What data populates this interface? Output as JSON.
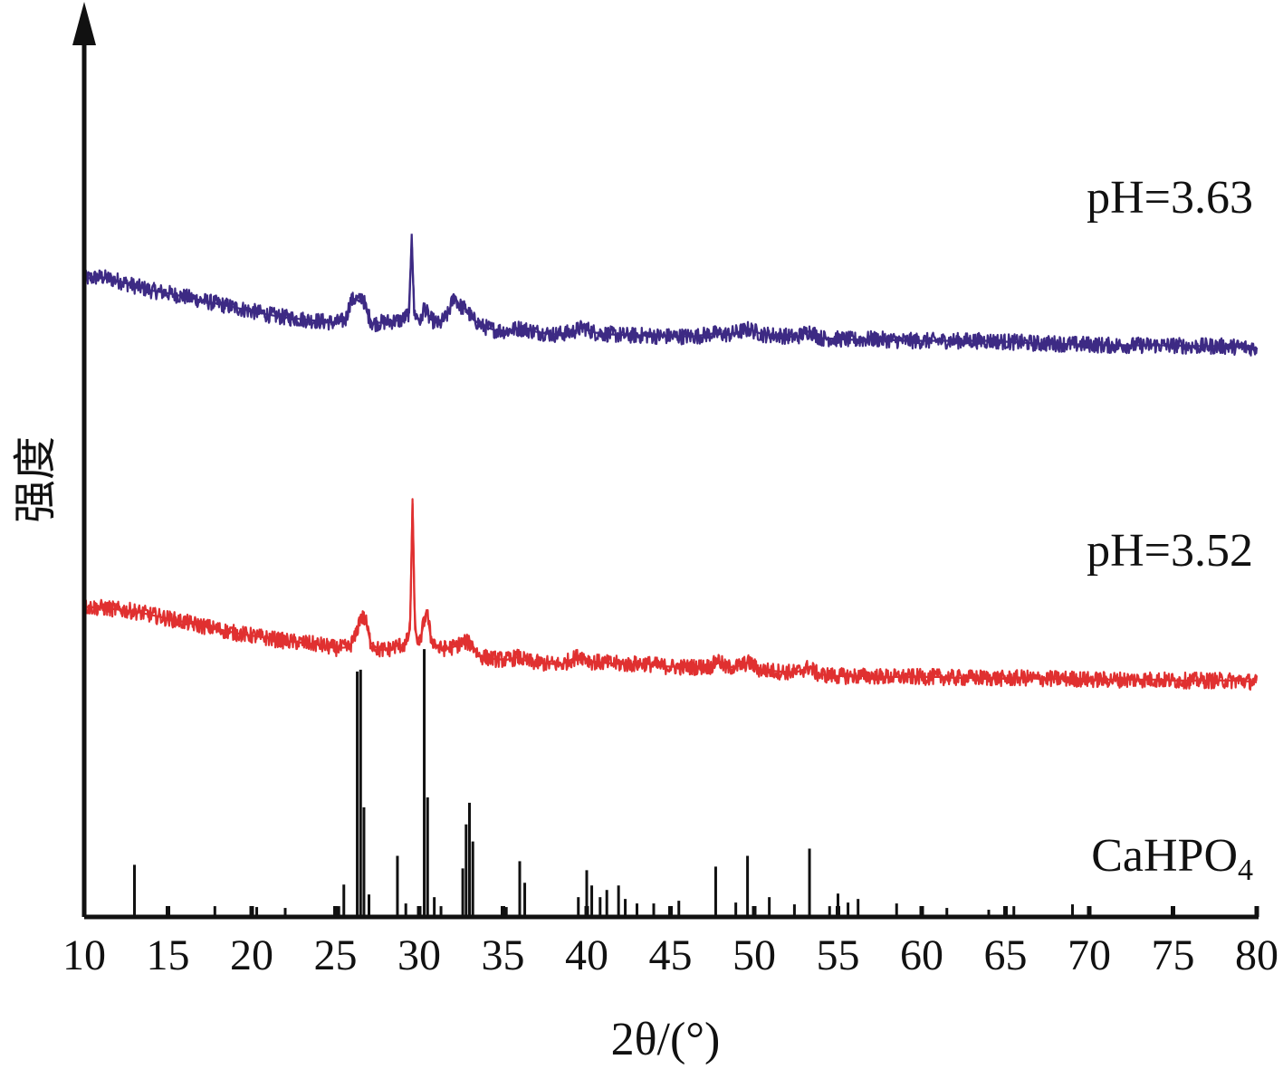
{
  "chart_data": {
    "type": "line",
    "xlabel": "2θ/(°)",
    "ylabel": "强度",
    "xlim": [
      10,
      80
    ],
    "x_ticks": [
      10,
      15,
      20,
      25,
      30,
      35,
      40,
      45,
      50,
      55,
      60,
      65,
      70,
      75,
      80
    ],
    "y_ticks": [],
    "series": [
      {
        "name": "pH=3.63",
        "color": "#3d2a84",
        "points": [
          [
            10.0,
            0.71
          ],
          [
            11.0,
            0.712
          ],
          [
            12.0,
            0.708
          ],
          [
            13.0,
            0.702
          ],
          [
            14.0,
            0.697
          ],
          [
            15.0,
            0.694
          ],
          [
            16.0,
            0.69
          ],
          [
            17.0,
            0.686
          ],
          [
            18.0,
            0.682
          ],
          [
            19.0,
            0.678
          ],
          [
            20.0,
            0.674
          ],
          [
            21.0,
            0.67
          ],
          [
            22.0,
            0.667
          ],
          [
            23.0,
            0.665
          ],
          [
            24.0,
            0.663
          ],
          [
            25.0,
            0.661
          ],
          [
            25.6,
            0.664
          ],
          [
            25.9,
            0.685
          ],
          [
            26.2,
            0.688
          ],
          [
            26.4,
            0.685
          ],
          [
            26.6,
            0.691
          ],
          [
            26.9,
            0.672
          ],
          [
            27.2,
            0.66
          ],
          [
            28.0,
            0.662
          ],
          [
            29.0,
            0.664
          ],
          [
            29.4,
            0.672
          ],
          [
            29.55,
            0.76
          ],
          [
            29.7,
            0.672
          ],
          [
            30.1,
            0.662
          ],
          [
            30.3,
            0.68
          ],
          [
            30.6,
            0.666
          ],
          [
            31.2,
            0.659
          ],
          [
            31.7,
            0.67
          ],
          [
            32.1,
            0.691
          ],
          [
            32.4,
            0.68
          ],
          [
            32.8,
            0.676
          ],
          [
            33.2,
            0.665
          ],
          [
            33.8,
            0.657
          ],
          [
            34.5,
            0.653
          ],
          [
            35.2,
            0.652
          ],
          [
            36.0,
            0.655
          ],
          [
            37.0,
            0.651
          ],
          [
            38.0,
            0.648
          ],
          [
            39.0,
            0.65
          ],
          [
            39.8,
            0.656
          ],
          [
            40.5,
            0.65
          ],
          [
            41.5,
            0.648
          ],
          [
            42.5,
            0.647
          ],
          [
            43.5,
            0.647
          ],
          [
            44.5,
            0.646
          ],
          [
            45.5,
            0.646
          ],
          [
            46.5,
            0.646
          ],
          [
            47.5,
            0.649
          ],
          [
            48.5,
            0.648
          ],
          [
            49.7,
            0.654
          ],
          [
            50.5,
            0.648
          ],
          [
            51.5,
            0.647
          ],
          [
            52.5,
            0.645
          ],
          [
            53.3,
            0.652
          ],
          [
            54.0,
            0.644
          ],
          [
            55.0,
            0.643
          ],
          [
            56.0,
            0.642
          ],
          [
            57.0,
            0.643
          ],
          [
            58.0,
            0.642
          ],
          [
            59.0,
            0.641
          ],
          [
            60.0,
            0.641
          ],
          [
            61.0,
            0.641
          ],
          [
            62.0,
            0.641
          ],
          [
            63.0,
            0.641
          ],
          [
            64.0,
            0.641
          ],
          [
            65.0,
            0.64
          ],
          [
            66.0,
            0.639
          ],
          [
            67.0,
            0.638
          ],
          [
            68.0,
            0.638
          ],
          [
            69.0,
            0.637
          ],
          [
            70.0,
            0.637
          ],
          [
            71.0,
            0.636
          ],
          [
            72.0,
            0.636
          ],
          [
            73.0,
            0.636
          ],
          [
            74.0,
            0.636
          ],
          [
            75.0,
            0.636
          ],
          [
            76.0,
            0.635
          ],
          [
            77.0,
            0.635
          ],
          [
            78.0,
            0.635
          ],
          [
            79.0,
            0.634
          ],
          [
            80.0,
            0.633
          ]
        ]
      },
      {
        "name": "pH=3.52",
        "color": "#e03030",
        "points": [
          [
            10.0,
            0.345
          ],
          [
            11.0,
            0.344
          ],
          [
            12.0,
            0.342
          ],
          [
            13.0,
            0.34
          ],
          [
            14.0,
            0.336
          ],
          [
            15.0,
            0.332
          ],
          [
            16.0,
            0.328
          ],
          [
            17.0,
            0.324
          ],
          [
            18.0,
            0.32
          ],
          [
            19.0,
            0.316
          ],
          [
            20.0,
            0.313
          ],
          [
            21.0,
            0.31
          ],
          [
            22.0,
            0.307
          ],
          [
            23.0,
            0.305
          ],
          [
            24.0,
            0.303
          ],
          [
            25.0,
            0.299
          ],
          [
            25.8,
            0.3
          ],
          [
            26.2,
            0.312
          ],
          [
            26.5,
            0.335
          ],
          [
            26.8,
            0.33
          ],
          [
            27.1,
            0.305
          ],
          [
            27.6,
            0.297
          ],
          [
            28.2,
            0.298
          ],
          [
            28.7,
            0.302
          ],
          [
            29.2,
            0.303
          ],
          [
            29.45,
            0.32
          ],
          [
            29.6,
            0.46
          ],
          [
            29.75,
            0.32
          ],
          [
            30.0,
            0.302
          ],
          [
            30.3,
            0.33
          ],
          [
            30.45,
            0.342
          ],
          [
            30.7,
            0.31
          ],
          [
            31.2,
            0.298
          ],
          [
            32.0,
            0.3
          ],
          [
            32.7,
            0.306
          ],
          [
            33.1,
            0.304
          ],
          [
            33.6,
            0.29
          ],
          [
            34.5,
            0.287
          ],
          [
            35.2,
            0.286
          ],
          [
            35.9,
            0.289
          ],
          [
            36.5,
            0.284
          ],
          [
            37.5,
            0.282
          ],
          [
            38.5,
            0.281
          ],
          [
            39.6,
            0.291
          ],
          [
            40.3,
            0.284
          ],
          [
            41.5,
            0.282
          ],
          [
            42.5,
            0.281
          ],
          [
            43.5,
            0.282
          ],
          [
            44.5,
            0.279
          ],
          [
            45.5,
            0.278
          ],
          [
            46.5,
            0.278
          ],
          [
            47.5,
            0.279
          ],
          [
            47.8,
            0.287
          ],
          [
            48.3,
            0.277
          ],
          [
            49.0,
            0.279
          ],
          [
            49.7,
            0.283
          ],
          [
            50.3,
            0.275
          ],
          [
            51.5,
            0.273
          ],
          [
            52.5,
            0.272
          ],
          [
            53.3,
            0.278
          ],
          [
            53.8,
            0.27
          ],
          [
            55.0,
            0.268
          ],
          [
            56.0,
            0.268
          ],
          [
            57.0,
            0.268
          ],
          [
            58.0,
            0.267
          ],
          [
            59.0,
            0.267
          ],
          [
            60.0,
            0.267
          ],
          [
            61.0,
            0.267
          ],
          [
            62.0,
            0.266
          ],
          [
            63.0,
            0.266
          ],
          [
            64.0,
            0.266
          ],
          [
            65.0,
            0.265
          ],
          [
            66.0,
            0.266
          ],
          [
            67.0,
            0.265
          ],
          [
            68.0,
            0.265
          ],
          [
            69.0,
            0.265
          ],
          [
            70.0,
            0.264
          ],
          [
            71.0,
            0.264
          ],
          [
            72.0,
            0.264
          ],
          [
            73.0,
            0.264
          ],
          [
            74.0,
            0.264
          ],
          [
            75.0,
            0.263
          ],
          [
            76.0,
            0.263
          ],
          [
            77.0,
            0.263
          ],
          [
            78.0,
            0.263
          ],
          [
            79.0,
            0.263
          ],
          [
            80.0,
            0.261
          ]
        ]
      }
    ],
    "reference": {
      "name": "CaHPO4",
      "color": "#111111",
      "sticks": [
        [
          13.0,
          0.058
        ],
        [
          15.0,
          0.01
        ],
        [
          17.8,
          0.012
        ],
        [
          20.0,
          0.01
        ],
        [
          20.3,
          0.011
        ],
        [
          22.0,
          0.01
        ],
        [
          25.2,
          0.012
        ],
        [
          25.5,
          0.036
        ],
        [
          26.3,
          0.273
        ],
        [
          26.5,
          0.275
        ],
        [
          26.7,
          0.122
        ],
        [
          27.0,
          0.025
        ],
        [
          28.7,
          0.068
        ],
        [
          29.2,
          0.015
        ],
        [
          30.3,
          0.298
        ],
        [
          30.5,
          0.133
        ],
        [
          30.9,
          0.022
        ],
        [
          31.3,
          0.012
        ],
        [
          32.6,
          0.054
        ],
        [
          32.8,
          0.103
        ],
        [
          33.0,
          0.127
        ],
        [
          33.2,
          0.084
        ],
        [
          35.2,
          0.011
        ],
        [
          36.0,
          0.062
        ],
        [
          36.3,
          0.038
        ],
        [
          39.5,
          0.022
        ],
        [
          40.0,
          0.052
        ],
        [
          40.3,
          0.035
        ],
        [
          40.8,
          0.022
        ],
        [
          41.2,
          0.03
        ],
        [
          41.9,
          0.035
        ],
        [
          42.3,
          0.02
        ],
        [
          43.0,
          0.015
        ],
        [
          44.0,
          0.015
        ],
        [
          45.0,
          0.012
        ],
        [
          45.5,
          0.018
        ],
        [
          47.7,
          0.056
        ],
        [
          48.9,
          0.016
        ],
        [
          49.6,
          0.068
        ],
        [
          50.9,
          0.022
        ],
        [
          52.4,
          0.014
        ],
        [
          53.3,
          0.076
        ],
        [
          54.5,
          0.012
        ],
        [
          55.0,
          0.026
        ],
        [
          55.6,
          0.016
        ],
        [
          56.2,
          0.02
        ],
        [
          58.5,
          0.015
        ],
        [
          60.0,
          0.012
        ],
        [
          61.5,
          0.01
        ],
        [
          64.0,
          0.008
        ],
        [
          65.5,
          0.012
        ],
        [
          69.0,
          0.014
        ]
      ]
    },
    "grid": false,
    "legend": "inline-right"
  }
}
